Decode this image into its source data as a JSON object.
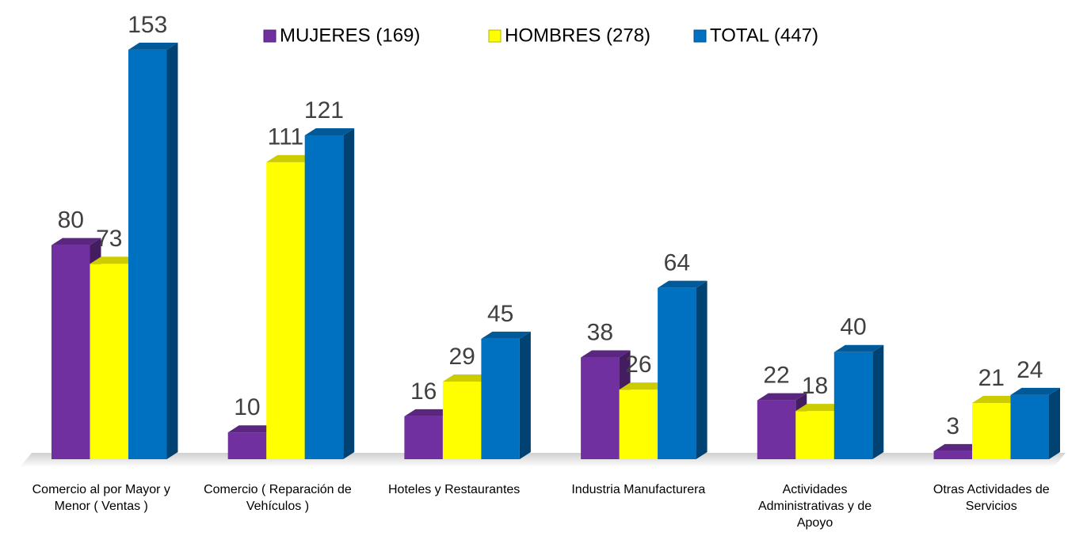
{
  "chart_data": {
    "type": "bar3d",
    "categories": [
      "Comercio al por Mayor y Menor  ( Ventas )",
      "Comercio ( Reparación de Vehículos )",
      "Hoteles y Restaurantes",
      "Industria Manufacturera",
      "Actividades Administrativas y de Apoyo",
      "Otras Actividades de Servicios"
    ],
    "series": [
      {
        "name": "MUJERES (169)",
        "color": "#7030a0",
        "values": [
          80,
          10,
          16,
          38,
          22,
          3
        ]
      },
      {
        "name": "HOMBRES (278)",
        "color": "#ffff00",
        "values": [
          73,
          111,
          29,
          26,
          18,
          21
        ]
      },
      {
        "name": "TOTAL (447)",
        "color": "#0070c0",
        "values": [
          153,
          121,
          45,
          64,
          40,
          24
        ]
      }
    ]
  }
}
